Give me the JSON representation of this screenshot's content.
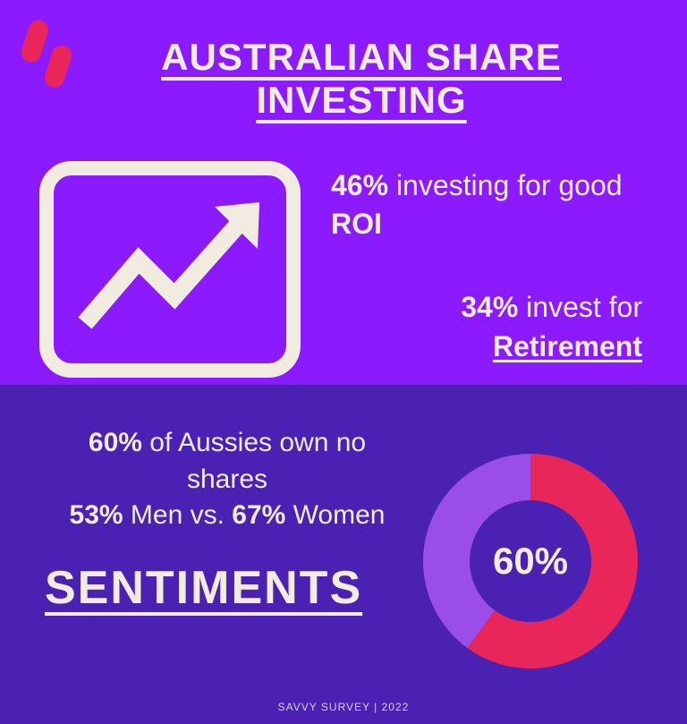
{
  "colors": {
    "top_bg": "#8c1aff",
    "bottom_bg": "#4a21b3",
    "cream": "#f2ebe0",
    "accent_red": "#e8265a",
    "donut_purple": "#9b4de8"
  },
  "header": {
    "title": "AUSTRALIAN SHARE INVESTING"
  },
  "top_stats": {
    "line1_pct": "46%",
    "line1_mid": " investing for good ",
    "line1_bold2": "ROI",
    "line2_pct": "34%",
    "line2_mid": " invest for ",
    "line2_underline": "Retirement"
  },
  "chart_icon": {
    "stroke_width": 14,
    "corner_radius": 28
  },
  "bottom_stats": {
    "pct1": "60%",
    "txt1": " of Aussies own no shares ",
    "pct2": "53%",
    "txt2": " Men vs. ",
    "pct3": "67%",
    "txt3": " Women",
    "sentiments": "SENTIMENTS"
  },
  "donut": {
    "center_label": "60%",
    "value": 60,
    "slice_color": "#e8265a",
    "remainder_color": "#9b4de8",
    "inner_bg": "#4a21b3",
    "outer_radius": 120,
    "inner_radius": 68
  },
  "footer": {
    "text": "SAVVY SURVEY | 2022"
  }
}
